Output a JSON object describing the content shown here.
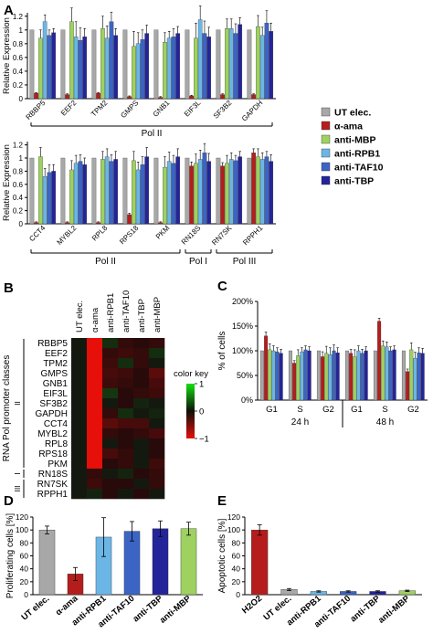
{
  "panel_labels": {
    "a": "A",
    "b": "B",
    "c": "C",
    "d": "D",
    "e": "E"
  },
  "colors": {
    "ut": "#a8a8a8",
    "ama": "#b51d1d",
    "mbp": "#9ed160",
    "rpb1": "#6bb6e6",
    "taf10": "#3b64c4",
    "tbp": "#24249a"
  },
  "legend_a": {
    "items": [
      {
        "label": "UT elec.",
        "color": "#a8a8a8"
      },
      {
        "label": "α-ama",
        "color": "#b51d1d"
      },
      {
        "label": "anti-MBP",
        "color": "#9ed160"
      },
      {
        "label": "anti-RPB1",
        "color": "#6bb6e6"
      },
      {
        "label": "anti-TAF10",
        "color": "#3b64c4"
      },
      {
        "label": "anti-TBP",
        "color": "#24249a"
      }
    ]
  },
  "chart_data": [
    {
      "id": "A-top",
      "type": "bar",
      "ylabel": "Relative Expression",
      "ylim": [
        0,
        1.25
      ],
      "yticks": [
        "0",
        "0.2",
        "0.4",
        "0.6",
        "0.8",
        "1",
        "1.2"
      ],
      "grid": false,
      "categories": [
        "RBBP5",
        "EEF2",
        "TPM2",
        "GMPS",
        "GNB1",
        "EIF3L",
        "SF3B2",
        "GAPDH"
      ],
      "bracket_labels": [
        "Pol II"
      ],
      "series": [
        {
          "name": "UT elec.",
          "values": [
            1,
            1,
            1,
            1,
            1,
            1,
            1,
            1
          ],
          "err": [
            0,
            0,
            0,
            0,
            0,
            0,
            0,
            0
          ]
        },
        {
          "name": "α-ama",
          "values": [
            0.08,
            0.06,
            0.08,
            0.03,
            0.02,
            0.04,
            0.06,
            0.06
          ],
          "err": [
            0.01,
            0.01,
            0.01,
            0.01,
            0.01,
            0.01,
            0.01,
            0.01
          ]
        },
        {
          "name": "anti-MBP",
          "values": [
            0.88,
            1.12,
            1.02,
            0.76,
            0.82,
            0.88,
            1.02,
            1.05
          ],
          "err": [
            0.12,
            0.2,
            0.18,
            0.22,
            0.14,
            0.22,
            0.14,
            0.16
          ]
        },
        {
          "name": "anti-RPB1",
          "values": [
            1.12,
            0.9,
            0.88,
            0.8,
            0.88,
            1.15,
            1.02,
            0.92
          ],
          "err": [
            0.1,
            0.22,
            0.18,
            0.16,
            0.1,
            0.2,
            0.14,
            0.12
          ]
        },
        {
          "name": "anti-TAF10",
          "values": [
            0.92,
            0.85,
            1.12,
            0.86,
            0.9,
            0.95,
            0.95,
            1.1
          ],
          "err": [
            0.08,
            0.18,
            0.14,
            0.14,
            0.12,
            0.18,
            0.14,
            0.18
          ]
        },
        {
          "name": "anti-TBP",
          "values": [
            0.96,
            0.9,
            0.92,
            0.95,
            0.95,
            0.9,
            1.08,
            0.98
          ],
          "err": [
            0.06,
            0.12,
            0.1,
            0.12,
            0.1,
            0.14,
            0.1,
            0.12
          ]
        }
      ]
    },
    {
      "id": "A-bottom",
      "type": "bar",
      "ylabel": "Relative Expression",
      "ylim": [
        0,
        1.25
      ],
      "yticks": [
        "0",
        "0.2",
        "0.4",
        "0.6",
        "0.8",
        "1",
        "1.2"
      ],
      "grid": false,
      "categories": [
        "CCT4",
        "MYBL2",
        "RPL8",
        "RPS18",
        "PKM",
        "RN18S",
        "RN7SK",
        "RPPH1"
      ],
      "bracket_labels": [
        "Pol II",
        "Pol I",
        "Pol III"
      ],
      "series": [
        {
          "name": "UT elec.",
          "values": [
            1,
            1,
            1,
            1,
            1,
            1,
            1,
            1
          ],
          "err": [
            0,
            0,
            0,
            0,
            0,
            0,
            0,
            0
          ]
        },
        {
          "name": "α-ama",
          "values": [
            0.02,
            0.02,
            0.02,
            0.14,
            0.02,
            0.88,
            0.88,
            1.08
          ],
          "err": [
            0.01,
            0.01,
            0.01,
            0.02,
            0.01,
            0.06,
            0.05,
            0.06
          ]
        },
        {
          "name": "anti-MBP",
          "values": [
            1.02,
            0.82,
            0.98,
            0.96,
            0.86,
            0.92,
            0.92,
            1.02
          ],
          "err": [
            0.14,
            0.14,
            0.12,
            0.14,
            0.16,
            0.14,
            0.12,
            0.12
          ]
        },
        {
          "name": "anti-RPB1",
          "values": [
            0.72,
            0.92,
            1.02,
            0.82,
            0.95,
            0.98,
            0.98,
            0.98
          ],
          "err": [
            0.12,
            0.12,
            0.12,
            0.12,
            0.14,
            0.14,
            0.1,
            0.1
          ]
        },
        {
          "name": "anti-TAF10",
          "values": [
            0.78,
            0.95,
            0.95,
            0.9,
            0.92,
            1.08,
            0.96,
            1.02
          ],
          "err": [
            0.12,
            0.1,
            0.1,
            0.12,
            0.12,
            0.14,
            0.08,
            0.08
          ]
        },
        {
          "name": "anti-TBP",
          "values": [
            0.8,
            0.9,
            0.98,
            1.02,
            1.02,
            0.95,
            1.02,
            0.95
          ],
          "err": [
            0.1,
            0.1,
            0.12,
            0.14,
            0.12,
            0.12,
            0.08,
            0.1
          ]
        }
      ]
    },
    {
      "id": "B",
      "type": "heatmap",
      "ylabel": "RNA Pol promoter classes",
      "columns": [
        "UT elec.",
        "α-ama",
        "anti-RPB1",
        "anti-TAF10",
        "anti-TBP",
        "anti-MBP"
      ],
      "rows": [
        "RBBP5",
        "EEF2",
        "TPM2",
        "GMPS",
        "GNB1",
        "EIF3L",
        "SF3B2",
        "GAPDH",
        "CCT4",
        "MYBL2",
        "RPL8",
        "RPS18",
        "PKM",
        "RN18S",
        "RN7SK",
        "RPPH1"
      ],
      "row_groups": [
        {
          "label": "II",
          "rows": 13
        },
        {
          "label": "I",
          "rows": 1
        },
        {
          "label": "III",
          "rows": 2
        }
      ],
      "values": [
        [
          0,
          -1,
          0.1,
          -0.1,
          -0.05,
          -0.1
        ],
        [
          0,
          -1,
          -0.1,
          -0.15,
          -0.1,
          0.1
        ],
        [
          0,
          -1,
          -0.15,
          0.1,
          -0.1,
          0
        ],
        [
          0,
          -1,
          -0.2,
          -0.15,
          -0.05,
          -0.3
        ],
        [
          0,
          -1,
          -0.15,
          -0.1,
          -0.05,
          -0.2
        ],
        [
          0,
          -1,
          0.15,
          -0.05,
          -0.1,
          -0.15
        ],
        [
          0,
          -1,
          0,
          -0.05,
          0.05,
          0
        ],
        [
          0,
          -1,
          -0.1,
          0.1,
          0,
          0.05
        ],
        [
          0,
          -1,
          -0.3,
          -0.2,
          -0.2,
          0
        ],
        [
          0,
          -1,
          -0.1,
          -0.05,
          -0.1,
          -0.2
        ],
        [
          0,
          -1,
          0,
          -0.05,
          0,
          -0.05
        ],
        [
          0,
          -1,
          -0.2,
          -0.1,
          0,
          -0.05
        ],
        [
          0,
          -1,
          -0.05,
          -0.1,
          0,
          -0.15
        ],
        [
          0,
          -0.1,
          0,
          0.05,
          -0.05,
          -0.1
        ],
        [
          0,
          -0.15,
          -0.05,
          -0.05,
          0,
          -0.1
        ],
        [
          0,
          0.05,
          -0.05,
          0,
          -0.05,
          0
        ]
      ],
      "color_key": {
        "title": "color key",
        "ticks": [
          "1",
          "0",
          "−1"
        ],
        "range": [
          -1,
          1
        ]
      }
    },
    {
      "id": "C",
      "type": "bar",
      "ylabel": "% of cells",
      "ylim": [
        0,
        200
      ],
      "yticks": [
        "0%",
        "50%",
        "100%",
        "150%",
        "200%"
      ],
      "grid": false,
      "categories": [
        "G1",
        "S",
        "G2",
        "G1",
        "S",
        "G2"
      ],
      "groups": [
        "24 h",
        "48 h"
      ],
      "series": [
        {
          "name": "UT elec.",
          "values": [
            100,
            100,
            100,
            100,
            100,
            100
          ],
          "err": [
            0,
            0,
            0,
            0,
            0,
            0
          ]
        },
        {
          "name": "α-ama",
          "values": [
            130,
            75,
            88,
            95,
            160,
            58
          ],
          "err": [
            8,
            5,
            10,
            8,
            6,
            5
          ]
        },
        {
          "name": "anti-MBP",
          "values": [
            102,
            90,
            95,
            88,
            110,
            102
          ],
          "err": [
            12,
            12,
            14,
            14,
            10,
            14
          ]
        },
        {
          "name": "anti-RPB1",
          "values": [
            100,
            98,
            92,
            100,
            108,
            85
          ],
          "err": [
            10,
            8,
            14,
            10,
            10,
            12
          ]
        },
        {
          "name": "anti-TAF10",
          "values": [
            98,
            102,
            100,
            95,
            100,
            96
          ],
          "err": [
            8,
            8,
            12,
            8,
            8,
            10
          ]
        },
        {
          "name": "anti-TBP",
          "values": [
            95,
            100,
            96,
            100,
            102,
            95
          ],
          "err": [
            8,
            8,
            10,
            8,
            8,
            10
          ]
        }
      ]
    },
    {
      "id": "D",
      "type": "bar",
      "ylabel": "Proliferating cells [%]",
      "ylim": [
        0,
        120
      ],
      "yticks": [
        "0",
        "20",
        "40",
        "60",
        "80",
        "100",
        "120"
      ],
      "grid": false,
      "categories": [
        "UT elec.",
        "α-ama",
        "anti-RPB1",
        "anti-TAF10",
        "anti-TBP",
        "anti-MBP"
      ],
      "values": [
        100,
        32,
        89,
        98,
        102,
        102
      ],
      "err": [
        6,
        10,
        30,
        15,
        12,
        10
      ],
      "bar_colors": [
        "#a8a8a8",
        "#b51d1d",
        "#6bb6e6",
        "#3b64c4",
        "#24249a",
        "#9ed160"
      ]
    },
    {
      "id": "E",
      "type": "bar",
      "ylabel": "Apoptotic cells [%]",
      "ylim": [
        0,
        120
      ],
      "yticks": [
        "0",
        "20",
        "40",
        "60",
        "80",
        "100",
        "120"
      ],
      "grid": false,
      "categories": [
        "H2O2",
        "UT elec.",
        "anti-RPB1",
        "anti-TAF10",
        "anti-TBP",
        "anti-MBP"
      ],
      "values": [
        100,
        8,
        5,
        5,
        5,
        6
      ],
      "err": [
        8,
        1.5,
        1,
        1,
        1,
        1
      ],
      "bar_colors": [
        "#b51d1d",
        "#a8a8a8",
        "#6bb6e6",
        "#3b64c4",
        "#24249a",
        "#9ed160"
      ]
    }
  ]
}
